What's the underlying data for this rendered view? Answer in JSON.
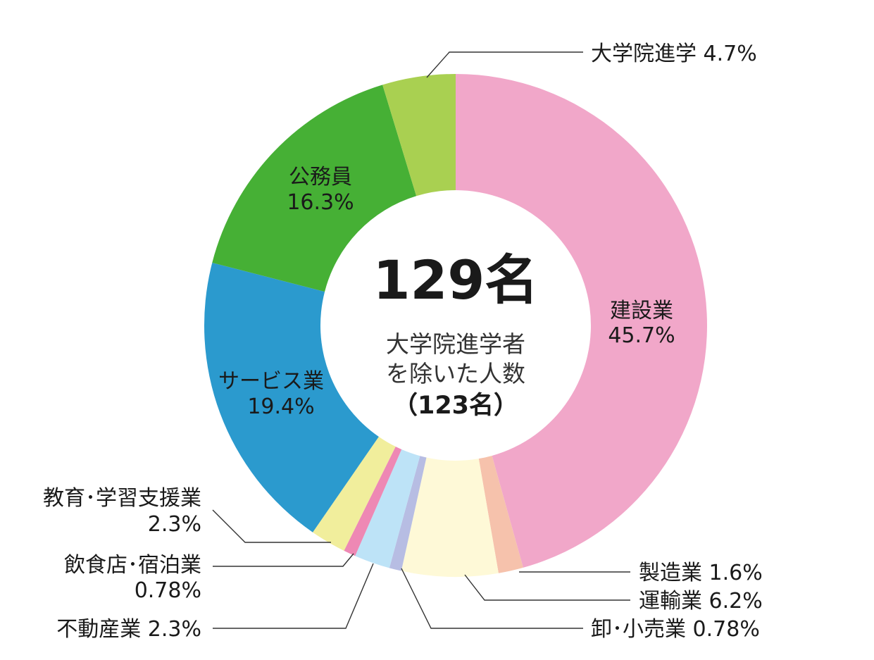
{
  "chart_data": {
    "type": "pie",
    "donut": true,
    "center": {
      "total": "129名",
      "sub_line1": "大学院進学者",
      "sub_line2": "を除いた人数",
      "sub_count": "（123名）"
    },
    "slices": [
      {
        "name": "建設業",
        "label": "建設業",
        "value_label": "45.7%",
        "value": 45.7,
        "color": "#f1a7c9"
      },
      {
        "name": "製造業",
        "label": "製造業 1.6%",
        "value_label": "",
        "value": 1.6,
        "color": "#f6c2ac"
      },
      {
        "name": "運輸業",
        "label": "運輸業 6.2%",
        "value_label": "",
        "value": 6.2,
        "color": "#fef9d7"
      },
      {
        "name": "卸・小売業",
        "label": "卸･小売業 0.78%",
        "value_label": "",
        "value": 0.78,
        "color": "#b7bde3"
      },
      {
        "name": "不動産業",
        "label": "不動産業 2.3%",
        "value_label": "",
        "value": 2.3,
        "color": "#bde3f7"
      },
      {
        "name": "飲食店・宿泊業",
        "label": "飲食店･宿泊業",
        "value_label": "0.78%",
        "value": 0.78,
        "color": "#ee88b4"
      },
      {
        "name": "教育・学習支援業",
        "label": "教育･学習支援業",
        "value_label": "2.3%",
        "value": 2.3,
        "color": "#f1ee9c"
      },
      {
        "name": "サービス業",
        "label": "サービス業",
        "value_label": "19.4%",
        "value": 19.4,
        "color": "#2b9ace"
      },
      {
        "name": "公務員",
        "label": "公務員",
        "value_label": "16.3%",
        "value": 16.3,
        "color": "#46b035"
      },
      {
        "name": "大学院進学",
        "label": "大学院進学 4.7%",
        "value_label": "",
        "value": 4.7,
        "color": "#a9d051"
      }
    ]
  }
}
